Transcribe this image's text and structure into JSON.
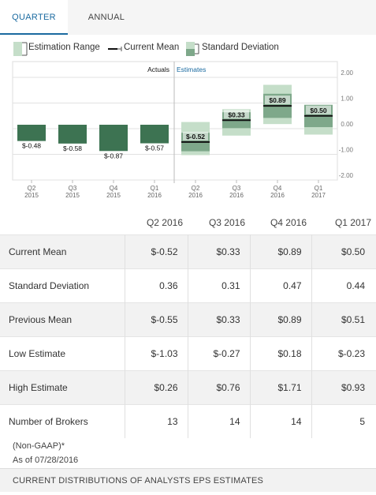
{
  "tabs": [
    {
      "label": "QUARTER",
      "active": true
    },
    {
      "label": "ANNUAL",
      "active": false
    }
  ],
  "legend": {
    "range": "Estimation Range",
    "mean": "Current Mean",
    "sd": "Standard Deviation"
  },
  "chart_data": {
    "type": "bar",
    "title": "",
    "xlabel": "",
    "ylabel": "",
    "ylim": [
      -2,
      2
    ],
    "yticks": [
      "2.00",
      "1.00",
      "0.00",
      "-1.00",
      "-2.00"
    ],
    "ytick_values": [
      2,
      1,
      0,
      -1,
      -2
    ],
    "grid": true,
    "sections": {
      "actuals": "Actuals",
      "estimates": "Estimates"
    },
    "actuals": [
      {
        "q": "Q2",
        "y": "2015",
        "value": -0.48,
        "label": "$-0.48"
      },
      {
        "q": "Q3",
        "y": "2015",
        "value": -0.58,
        "label": "$-0.58"
      },
      {
        "q": "Q4",
        "y": "2015",
        "value": -0.87,
        "label": "$-0.87"
      },
      {
        "q": "Q1",
        "y": "2016",
        "value": -0.57,
        "label": "$-0.57"
      }
    ],
    "estimates": [
      {
        "q": "Q2",
        "y": "2016",
        "mean": -0.52,
        "sd": 0.36,
        "low": -1.03,
        "high": 0.26,
        "label": "$-0.52"
      },
      {
        "q": "Q3",
        "y": "2016",
        "mean": 0.33,
        "sd": 0.31,
        "low": -0.27,
        "high": 0.76,
        "label": "$0.33"
      },
      {
        "q": "Q4",
        "y": "2016",
        "mean": 0.89,
        "sd": 0.47,
        "low": 0.18,
        "high": 1.71,
        "label": "$0.89"
      },
      {
        "q": "Q1",
        "y": "2017",
        "mean": 0.5,
        "sd": 0.44,
        "low": -0.23,
        "high": 0.93,
        "label": "$0.50"
      }
    ],
    "colors": {
      "actual": "#3d7352",
      "range": "#c5dec9",
      "sd": "#7ea88a",
      "mean": "#111111"
    }
  },
  "table": {
    "headers": [
      "Q2 2016",
      "Q3 2016",
      "Q4 2016",
      "Q1 2017"
    ],
    "rows": [
      {
        "label": "Current Mean",
        "values": [
          "$-0.52",
          "$0.33",
          "$0.89",
          "$0.50"
        ]
      },
      {
        "label": "Standard Deviation",
        "values": [
          "0.36",
          "0.31",
          "0.47",
          "0.44"
        ]
      },
      {
        "label": "Previous Mean",
        "values": [
          "$-0.55",
          "$0.33",
          "$0.89",
          "$0.51"
        ]
      },
      {
        "label": "Low Estimate",
        "values": [
          "$-1.03",
          "$-0.27",
          "$0.18",
          "$-0.23"
        ]
      },
      {
        "label": "High Estimate",
        "values": [
          "$0.26",
          "$0.76",
          "$1.71",
          "$0.93"
        ]
      },
      {
        "label": "Number of Brokers",
        "values": [
          "13",
          "14",
          "14",
          "5"
        ]
      }
    ]
  },
  "notes": {
    "gaap": "(Non-GAAP)*",
    "asof": "As of 07/28/2016"
  },
  "footer": "CURRENT DISTRIBUTIONS OF ANALYSTS EPS ESTIMATES"
}
